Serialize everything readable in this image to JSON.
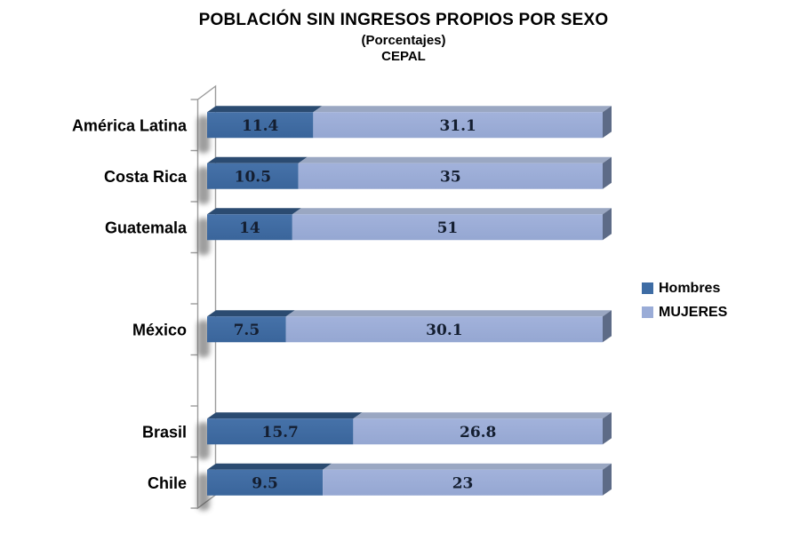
{
  "title": "POBLACIÓN SIN INGRESOS PROPIOS POR SEXO",
  "subtitle": "(Porcentajes)",
  "source": "CEPAL",
  "chart_data": {
    "type": "bar",
    "orientation": "horizontal",
    "stacking": "percent",
    "style": "3d",
    "title": "POBLACIÓN SIN INGRESOS PROPIOS POR SEXO",
    "subtitle": "(Porcentajes)",
    "source": "CEPAL",
    "xlabel": "",
    "ylabel": "",
    "grid": false,
    "legend_position": "right",
    "data_labels": true,
    "categories": [
      "América Latina",
      "Costa Rica",
      "Guatemala",
      "",
      "México",
      "",
      "Brasil",
      "Chile"
    ],
    "series": [
      {
        "name": "Hombres",
        "color": "#3E6CA4",
        "top_color": "#2B4B71",
        "values": [
          11.4,
          10.5,
          14,
          null,
          7.5,
          null,
          15.7,
          9.5
        ]
      },
      {
        "name": "MUJERES",
        "color": "#9AACD7",
        "top_color": "#9AA7C2",
        "values": [
          31.1,
          35,
          51,
          null,
          30.1,
          null,
          26.8,
          23
        ]
      }
    ]
  },
  "colors": {
    "background": "#FFFFFF",
    "end_cap": "#5D6B87",
    "axis_line": "#9B9B9B",
    "value_label": "#141E30",
    "text": "#000000",
    "bar_shadow": "#3C3C3C"
  }
}
